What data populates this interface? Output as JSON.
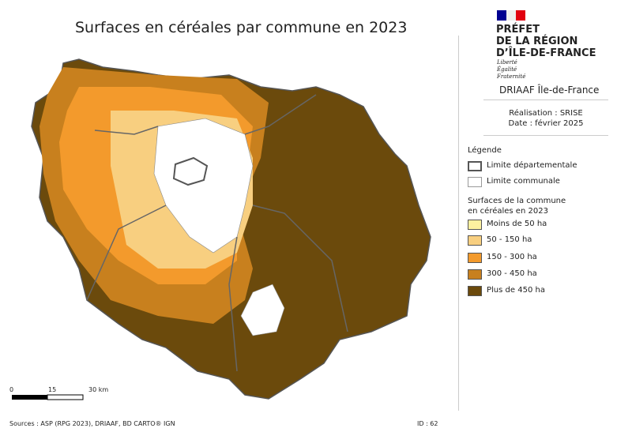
{
  "title": "Surfaces en céréales par commune en 2023",
  "logo": {
    "lines": [
      "PRÉFET",
      "DE LA RÉGION",
      "D’ÎLE-DE-FRANCE"
    ],
    "motto": [
      "Liberté",
      "Égalité",
      "Fraternité"
    ],
    "service": "DRIAAF Île-de-France"
  },
  "credits": {
    "production": "Réalisation : SRISE",
    "date": "Date : février 2025"
  },
  "legend": {
    "title": "Légende",
    "boundaries": [
      "Limite départementale",
      "Limite communale"
    ],
    "classes_title": [
      "Surfaces de la commune",
      "en céréales en 2023"
    ],
    "classes": [
      "Moins de 50 ha",
      "50 - 150 ha",
      "150 - 300 ha",
      "300 - 450 ha",
      "Plus de 450 ha"
    ]
  },
  "scale": {
    "labels": [
      "0",
      "15",
      "30 km"
    ]
  },
  "footer": {
    "sources": "Sources : ASP (RPG 2023), DRIAAF, BD CARTO® IGN",
    "id": "ID : 62"
  }
}
